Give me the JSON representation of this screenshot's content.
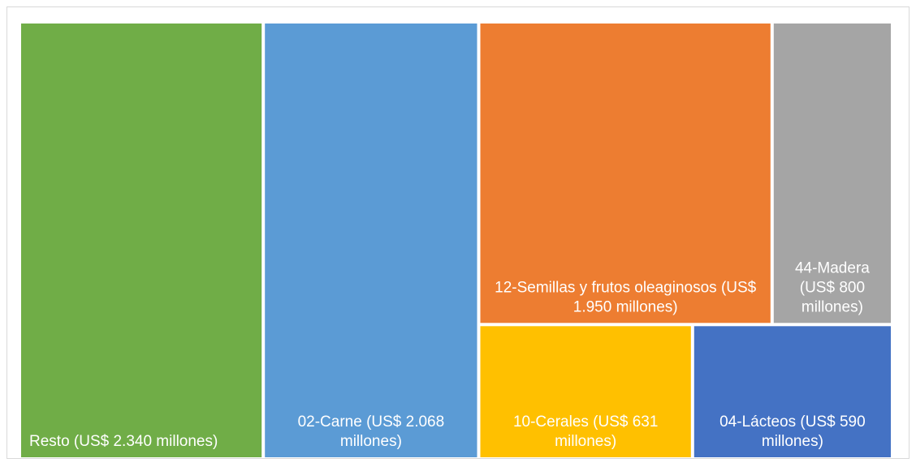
{
  "chart_data": {
    "type": "treemap",
    "items": [
      {
        "id": "resto",
        "label_lines": [
          "Resto  (US$ 2.340 millones)"
        ],
        "value": 2340,
        "color": "#70ad47",
        "align": "left"
      },
      {
        "id": "carne",
        "label_lines": [
          "02-Carne (US$ 2.068",
          "millones)"
        ],
        "value": 2068,
        "color": "#5b9bd5",
        "align": "center"
      },
      {
        "id": "semillas",
        "label_lines": [
          "12-Semillas y frutos oleaginosos (US$",
          "1.950 millones)"
        ],
        "value": 1950,
        "color": "#ed7d31",
        "align": "center"
      },
      {
        "id": "madera",
        "label_lines": [
          "44-Madera",
          "(US$ 800",
          "millones)"
        ],
        "value": 800,
        "color": "#a5a5a5",
        "align": "center"
      },
      {
        "id": "cereales",
        "label_lines": [
          "10-Cerales (US$ 631",
          "millones)"
        ],
        "value": 631,
        "color": "#ffc000",
        "align": "center"
      },
      {
        "id": "lacteos",
        "label_lines": [
          "04-Lácteos (US$ 590",
          "millones)"
        ],
        "value": 590,
        "color": "#4472c4",
        "align": "center"
      }
    ]
  }
}
